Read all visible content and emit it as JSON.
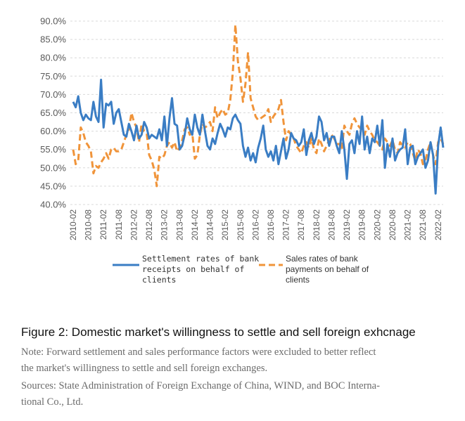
{
  "chart_data": {
    "type": "line",
    "ylim": [
      40,
      90
    ],
    "y_ticks": [
      "90.0%",
      "85.0%",
      "80.0%",
      "75.0%",
      "70.0%",
      "65.0%",
      "60.0%",
      "55.0%",
      "50.0%",
      "45.0%",
      "40.0%"
    ],
    "y_tick_values": [
      90,
      85,
      80,
      75,
      70,
      65,
      60,
      55,
      50,
      45,
      40
    ],
    "x_ticks": [
      "2010-02",
      "2010-08",
      "2011-02",
      "2011-08",
      "2012-02",
      "2012-08",
      "2013-02",
      "2013-08",
      "2014-02",
      "2014-08",
      "2015-02",
      "2015-08",
      "2016-02",
      "2016-08",
      "2017-02",
      "2017-08",
      "2018-02",
      "2018-08",
      "2019-02",
      "2019-08",
      "2020-02",
      "2020-08",
      "2021-02",
      "2021-08",
      "2022-02"
    ],
    "x_tick_index": [
      0,
      6,
      12,
      18,
      24,
      30,
      36,
      42,
      48,
      54,
      60,
      66,
      72,
      78,
      84,
      90,
      96,
      102,
      108,
      114,
      120,
      126,
      132,
      138,
      144
    ],
    "months_start": "2010-02",
    "series": [
      {
        "name": "Settlement rates of bank receipts on behalf of clients",
        "legend_lines": [
          "Settlement rates of bank",
          "receipts on behalf of",
          "clients"
        ],
        "color": "#3a7dc4",
        "style": "solid",
        "values": [
          68.0,
          66.5,
          69.5,
          65.0,
          63.0,
          64.5,
          63.5,
          63.0,
          68.0,
          64.0,
          62.5,
          74.0,
          61.0,
          67.5,
          67.0,
          68.0,
          62.0,
          65.0,
          66.0,
          62.5,
          59.0,
          58.5,
          62.0,
          60.0,
          57.5,
          61.5,
          58.0,
          59.0,
          62.5,
          61.0,
          58.0,
          59.0,
          58.5,
          58.0,
          60.5,
          57.5,
          64.0,
          56.0,
          63.5,
          69.0,
          62.0,
          61.5,
          55.0,
          56.0,
          59.0,
          63.5,
          60.5,
          59.0,
          64.5,
          61.0,
          59.0,
          64.5,
          60.0,
          56.0,
          55.0,
          58.0,
          56.5,
          59.5,
          62.0,
          60.5,
          58.5,
          61.0,
          60.5,
          63.5,
          64.5,
          63.0,
          62.0,
          56.0,
          53.0,
          55.5,
          52.0,
          54.0,
          51.5,
          55.5,
          58.0,
          61.5,
          55.0,
          53.0,
          54.5,
          52.0,
          56.0,
          51.0,
          54.5,
          58.0,
          52.5,
          55.0,
          59.5,
          58.0,
          57.5,
          56.0,
          57.0,
          60.5,
          53.5,
          57.5,
          59.5,
          56.5,
          58.5,
          64.0,
          62.5,
          57.5,
          59.5,
          56.0,
          58.5,
          58.5,
          56.0,
          54.0,
          60.0,
          55.0,
          47.0,
          56.5,
          57.5,
          54.0,
          60.0,
          56.5,
          64.0,
          55.0,
          58.5,
          54.0,
          58.0,
          57.0,
          61.5,
          56.0,
          63.0,
          50.0,
          56.5,
          53.0,
          58.0,
          52.0,
          54.0,
          55.0,
          55.5,
          60.5,
          51.0,
          55.5,
          56.0,
          51.0,
          53.0,
          54.0,
          55.0,
          50.0,
          52.0,
          57.0,
          53.5,
          43.0,
          56.0,
          61.0,
          55.5
        ]
      },
      {
        "name": "Sales rates of bank payments on behalf of clients",
        "legend_lines": [
          "Sales rates of bank",
          "payments on behalf of",
          "clients"
        ],
        "color": "#f0943a",
        "style": "dashed",
        "values": [
          55.0,
          51.0,
          52.0,
          61.0,
          59.5,
          57.0,
          56.0,
          54.5,
          48.5,
          50.5,
          50.0,
          51.5,
          52.5,
          54.0,
          52.5,
          55.0,
          55.5,
          54.5,
          54.5,
          55.0,
          57.0,
          59.0,
          60.5,
          65.0,
          62.5,
          61.0,
          57.0,
          62.0,
          60.0,
          59.5,
          53.5,
          52.0,
          49.5,
          45.0,
          53.0,
          52.5,
          53.5,
          56.0,
          57.0,
          55.5,
          57.0,
          54.5,
          55.5,
          57.5,
          60.5,
          61.0,
          59.0,
          59.5,
          52.5,
          53.5,
          59.0,
          62.0,
          61.0,
          61.5,
          62.5,
          60.0,
          66.5,
          63.5,
          65.0,
          66.0,
          64.5,
          65.0,
          68.5,
          76.0,
          89.0,
          79.0,
          74.5,
          68.0,
          73.0,
          81.5,
          69.0,
          66.5,
          64.0,
          63.0,
          63.5,
          64.0,
          64.5,
          66.0,
          62.5,
          64.0,
          65.0,
          66.0,
          68.5,
          62.5,
          57.5,
          60.0,
          59.0,
          58.0,
          56.0,
          55.0,
          54.0,
          56.0,
          57.0,
          55.5,
          58.0,
          55.0,
          54.0,
          58.0,
          56.5,
          54.5,
          56.0,
          57.5,
          59.0,
          58.0,
          56.5,
          56.5,
          55.0,
          61.5,
          60.0,
          59.0,
          62.0,
          63.5,
          62.0,
          61.0,
          60.5,
          59.0,
          61.5,
          60.0,
          59.0,
          57.5,
          57.0,
          56.0,
          55.0,
          58.0,
          57.0,
          56.0,
          57.5,
          55.0,
          54.0,
          57.0,
          56.0,
          55.5,
          57.0,
          56.5,
          54.0,
          52.0,
          55.0,
          54.0,
          51.0,
          52.0,
          55.0,
          57.0,
          53.5,
          51.0,
          57.0,
          58.0,
          56.5
        ]
      }
    ]
  },
  "caption": {
    "title": "Figure 2: Domestic market's willingness to settle and sell foreign exhcnage",
    "note_line1": "Note: Forward settlement and sales performance factors were excluded to better reflect",
    "note_line2": "the market's willingness to settle and sell foreign exchanges.",
    "sources_line1": "Sources: State Administration of Foreign Exchange of China, WIND, and BOC Interna-",
    "sources_line2": "tional Co., Ltd."
  }
}
